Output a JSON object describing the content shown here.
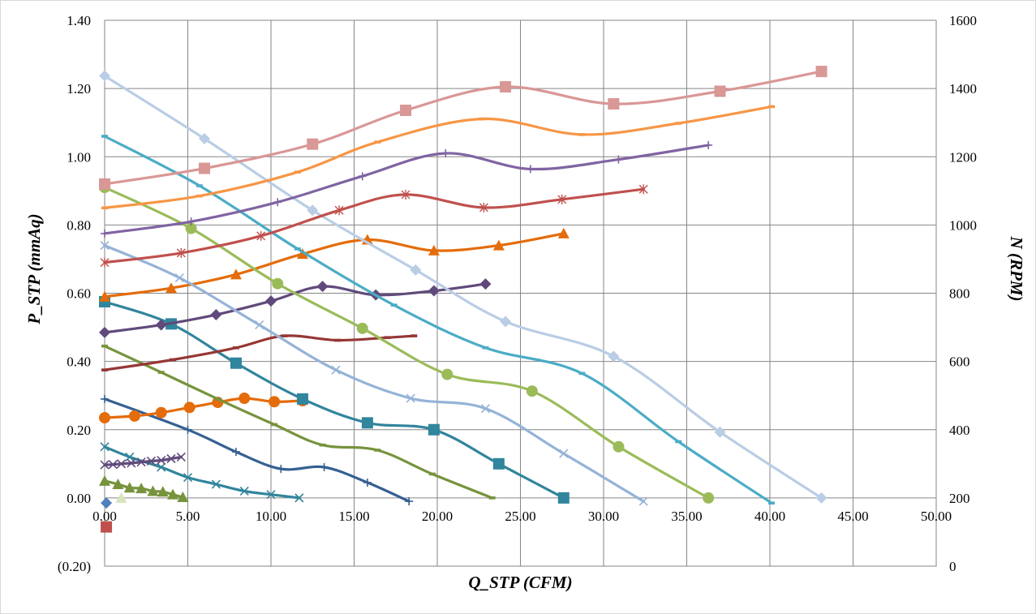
{
  "chart_data": {
    "type": "line",
    "xlabel": "Q_STP (CFM)",
    "ylabel": "P_STP (mmAq)",
    "y2label": "N (RPM)",
    "xlim": [
      0,
      50
    ],
    "ylim": [
      -0.2,
      1.4
    ],
    "y2lim": [
      0,
      1600
    ],
    "grid": true,
    "x_ticks": [
      "0.00",
      "5.00",
      "10.00",
      "15.00",
      "20.00",
      "25.00",
      "30.00",
      "35.00",
      "40.00",
      "45.00",
      "50.00"
    ],
    "y_ticks": [
      "(0.20)",
      "0.00",
      "0.20",
      "0.40",
      "0.60",
      "0.80",
      "1.00",
      "1.20",
      "1.40"
    ],
    "y2_ticks": [
      "0",
      "200",
      "400",
      "600",
      "800",
      "1000",
      "1200",
      "1400",
      "1600"
    ],
    "negative_tick_color": "#ff0000",
    "series": [
      {
        "color": "#c0504d",
        "marker": "square",
        "axis": "y",
        "points": [
          [
            0.1,
            -0.085
          ]
        ]
      },
      {
        "color": "#4f81bd",
        "marker": "diamond",
        "axis": "y",
        "points": [
          [
            0.1,
            -0.015
          ]
        ]
      },
      {
        "color": "#d7e4bd",
        "marker": "triangle",
        "axis": "y",
        "points": [
          [
            1.0,
            0.0
          ]
        ]
      },
      {
        "color": "#77933c",
        "marker": "triangle",
        "axis": "y",
        "points": [
          [
            0.0,
            0.05
          ],
          [
            0.8,
            0.04
          ],
          [
            1.5,
            0.03
          ],
          [
            2.2,
            0.028
          ],
          [
            2.9,
            0.02
          ],
          [
            3.5,
            0.018
          ],
          [
            4.1,
            0.01
          ],
          [
            4.7,
            0.002
          ]
        ]
      },
      {
        "color": "#31859c",
        "marker": "x",
        "axis": "y",
        "points": [
          [
            0.0,
            0.15
          ],
          [
            1.5,
            0.12
          ],
          [
            3.4,
            0.09
          ],
          [
            5.0,
            0.06
          ],
          [
            6.7,
            0.04
          ],
          [
            8.4,
            0.02
          ],
          [
            10.0,
            0.01
          ],
          [
            11.7,
            0.0
          ]
        ]
      },
      {
        "color": "#604a7b",
        "marker": "x",
        "axis": "y",
        "points": [
          [
            0.0,
            0.097
          ],
          [
            0.5,
            0.098
          ],
          [
            1.0,
            0.1
          ],
          [
            1.6,
            0.102
          ],
          [
            2.2,
            0.105
          ],
          [
            2.8,
            0.108
          ],
          [
            3.4,
            0.11
          ],
          [
            4.0,
            0.115
          ],
          [
            4.6,
            0.12
          ]
        ]
      },
      {
        "color": "#366092",
        "marker": "plus",
        "axis": "y",
        "points": [
          [
            0.0,
            0.29
          ],
          [
            5.0,
            0.2
          ],
          [
            7.9,
            0.135
          ],
          [
            10.6,
            0.085
          ],
          [
            13.2,
            0.09
          ],
          [
            15.8,
            0.045
          ],
          [
            18.3,
            -0.01
          ]
        ]
      },
      {
        "color": "#e46c0a",
        "marker": "circle",
        "axis": "y",
        "points": [
          [
            0.0,
            0.235
          ],
          [
            1.8,
            0.24
          ],
          [
            3.4,
            0.25
          ],
          [
            5.1,
            0.265
          ],
          [
            6.8,
            0.28
          ],
          [
            8.4,
            0.292
          ],
          [
            10.2,
            0.282
          ],
          [
            11.9,
            0.285
          ]
        ]
      },
      {
        "color": "#77933c",
        "marker": "dash",
        "axis": "y",
        "points": [
          [
            0.0,
            0.445
          ],
          [
            3.4,
            0.368
          ],
          [
            6.8,
            0.29
          ],
          [
            10.2,
            0.215
          ],
          [
            13.1,
            0.155
          ],
          [
            16.4,
            0.14
          ],
          [
            19.7,
            0.07
          ],
          [
            23.3,
            0.0
          ]
        ]
      },
      {
        "color": "#31859c",
        "marker": "square",
        "axis": "y",
        "points": [
          [
            0.0,
            0.575
          ],
          [
            4.0,
            0.51
          ],
          [
            7.9,
            0.395
          ],
          [
            11.9,
            0.29
          ],
          [
            15.8,
            0.22
          ],
          [
            19.8,
            0.2
          ],
          [
            23.7,
            0.1
          ],
          [
            27.6,
            0.0
          ]
        ]
      },
      {
        "color": "#953735",
        "marker": "dash",
        "axis": "y",
        "points": [
          [
            0.0,
            0.375
          ],
          [
            4.1,
            0.405
          ],
          [
            7.9,
            0.44
          ],
          [
            10.8,
            0.475
          ],
          [
            14.0,
            0.462
          ],
          [
            17.0,
            0.47
          ],
          [
            18.6,
            0.475
          ]
        ]
      },
      {
        "color": "#604a7b",
        "marker": "diamond",
        "axis": "y",
        "points": [
          [
            0.0,
            0.485
          ],
          [
            3.4,
            0.507
          ],
          [
            6.7,
            0.537
          ],
          [
            10.0,
            0.577
          ],
          [
            13.1,
            0.62
          ],
          [
            16.3,
            0.595
          ],
          [
            19.8,
            0.607
          ],
          [
            22.9,
            0.627
          ]
        ]
      },
      {
        "color": "#e46c0a",
        "marker": "triangle",
        "axis": "y",
        "points": [
          [
            0.0,
            0.59
          ],
          [
            4.0,
            0.615
          ],
          [
            7.9,
            0.655
          ],
          [
            11.9,
            0.715
          ],
          [
            15.8,
            0.757
          ],
          [
            19.8,
            0.725
          ],
          [
            23.7,
            0.74
          ],
          [
            27.6,
            0.775
          ]
        ]
      },
      {
        "color": "#95b3d7",
        "marker": "x",
        "axis": "y",
        "points": [
          [
            0.0,
            0.74
          ],
          [
            4.5,
            0.645
          ],
          [
            9.3,
            0.507
          ],
          [
            13.9,
            0.375
          ],
          [
            18.4,
            0.292
          ],
          [
            22.9,
            0.262
          ],
          [
            27.6,
            0.13
          ],
          [
            32.4,
            -0.01
          ]
        ]
      },
      {
        "color": "#9bbb59",
        "marker": "circle",
        "axis": "y",
        "points": [
          [
            0.0,
            0.91
          ],
          [
            5.2,
            0.79
          ],
          [
            10.4,
            0.628
          ],
          [
            15.5,
            0.497
          ],
          [
            20.6,
            0.362
          ],
          [
            25.7,
            0.313
          ],
          [
            30.9,
            0.15
          ],
          [
            36.3,
            0.0
          ]
        ]
      },
      {
        "color": "#4bacc6",
        "marker": "dash",
        "axis": "y",
        "points": [
          [
            0.0,
            1.06
          ],
          [
            5.7,
            0.915
          ],
          [
            11.6,
            0.73
          ],
          [
            17.4,
            0.565
          ],
          [
            22.9,
            0.44
          ],
          [
            28.7,
            0.365
          ],
          [
            34.5,
            0.165
          ],
          [
            40.1,
            -0.015
          ]
        ]
      },
      {
        "color": "#b9cde5",
        "marker": "diamond",
        "axis": "y",
        "points": [
          [
            0.0,
            1.237
          ],
          [
            6.0,
            1.053
          ],
          [
            12.5,
            0.843
          ],
          [
            18.7,
            0.668
          ],
          [
            24.1,
            0.517
          ],
          [
            30.6,
            0.415
          ],
          [
            37.0,
            0.193
          ],
          [
            43.1,
            0.0
          ]
        ]
      },
      {
        "color": "#c0504d",
        "marker": "star",
        "axis": "y2",
        "points": [
          [
            0.0,
            890
          ],
          [
            4.6,
            918
          ],
          [
            9.4,
            968
          ],
          [
            14.1,
            1043
          ],
          [
            18.1,
            1089
          ],
          [
            22.8,
            1051
          ],
          [
            27.5,
            1075
          ],
          [
            32.4,
            1105
          ]
        ]
      },
      {
        "color": "#8064a2",
        "marker": "plus",
        "axis": "y2",
        "points": [
          [
            0.0,
            975
          ],
          [
            5.2,
            1010
          ],
          [
            10.4,
            1067
          ],
          [
            15.5,
            1143
          ],
          [
            20.5,
            1210
          ],
          [
            25.6,
            1164
          ],
          [
            30.9,
            1192
          ],
          [
            36.3,
            1234
          ]
        ]
      },
      {
        "color": "#f79646",
        "marker": "dash",
        "axis": "y2",
        "points": [
          [
            0.0,
            1050
          ],
          [
            5.7,
            1085
          ],
          [
            11.6,
            1155
          ],
          [
            16.4,
            1243
          ],
          [
            22.7,
            1311
          ],
          [
            28.7,
            1265
          ],
          [
            34.5,
            1298
          ],
          [
            40.1,
            1347
          ]
        ]
      },
      {
        "color": "#d99795",
        "marker": "square",
        "axis": "y2",
        "points": [
          [
            0.0,
            1120
          ],
          [
            6.0,
            1166
          ],
          [
            12.5,
            1237
          ],
          [
            18.1,
            1336
          ],
          [
            24.1,
            1405
          ],
          [
            30.6,
            1355
          ],
          [
            37.0,
            1392
          ],
          [
            43.1,
            1450
          ]
        ]
      }
    ]
  }
}
